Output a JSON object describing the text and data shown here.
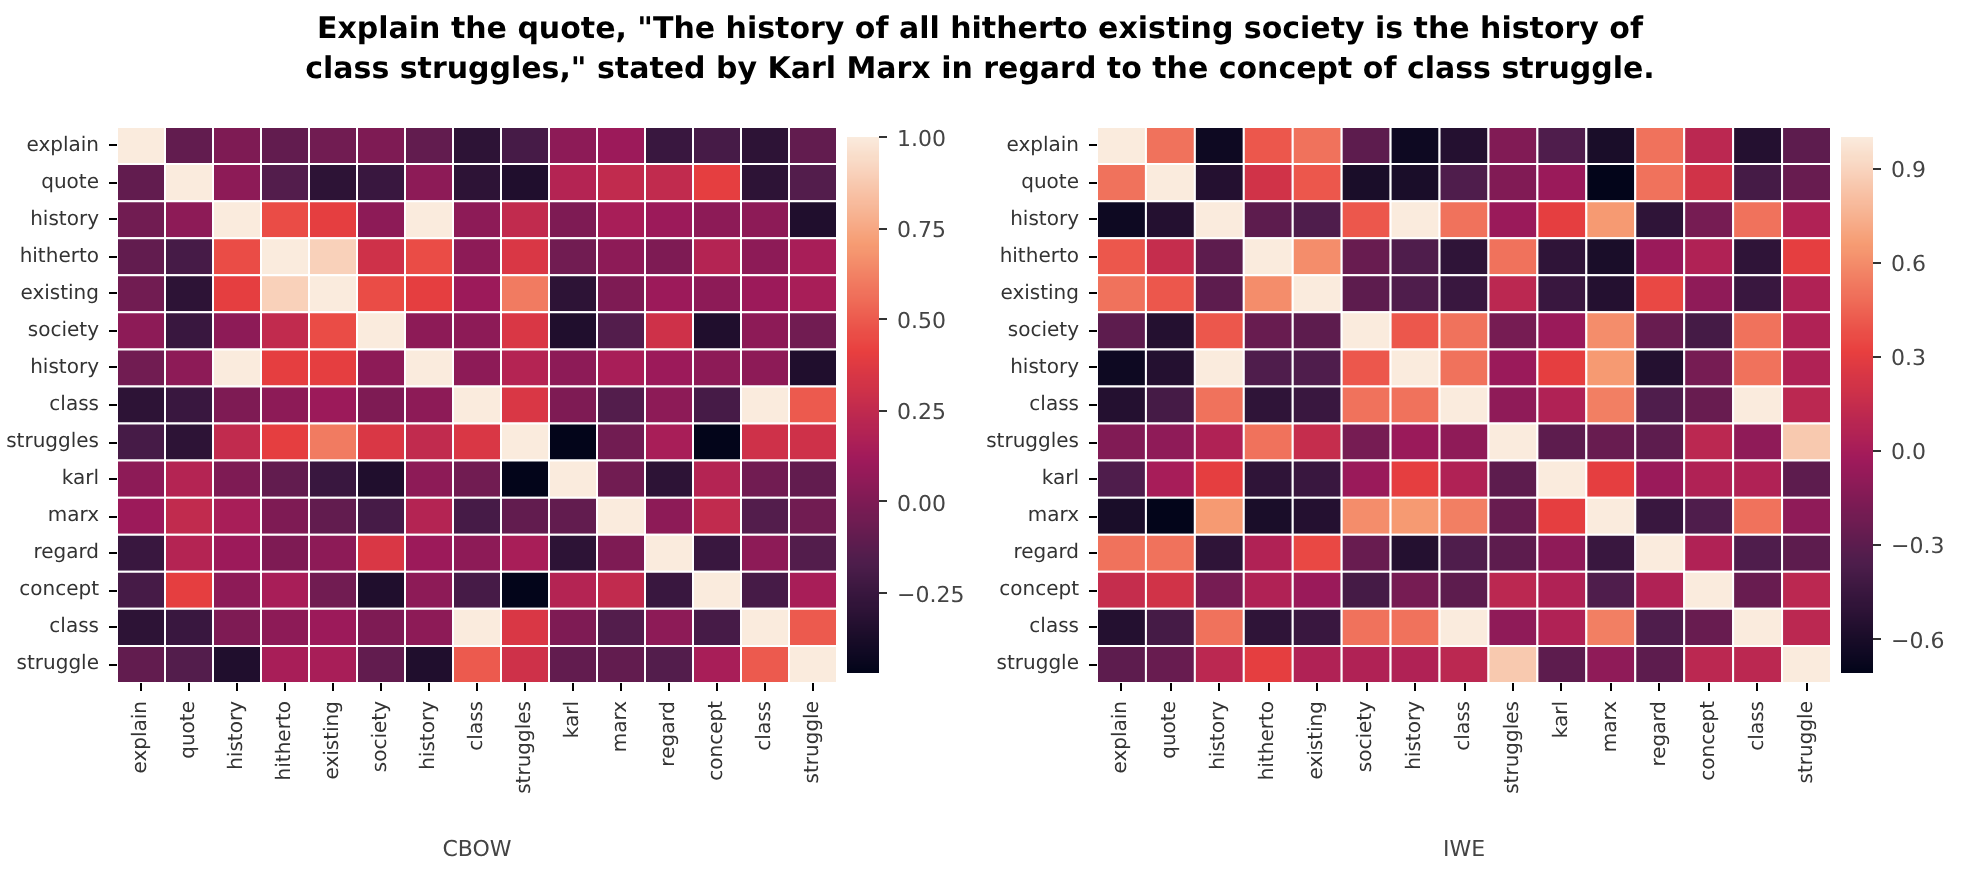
{
  "chart_data": [
    {
      "type": "heatmap",
      "title": "Explain the quote, \"The history of all hitherto existing society is the history of class struggles,\" stated by Karl Marx in regard to the concept of class struggle.",
      "xlabel": "CBOW",
      "categories": [
        "explain",
        "quote",
        "history",
        "hitherto",
        "existing",
        "society",
        "history",
        "class",
        "struggles",
        "karl",
        "marx",
        "regard",
        "concept",
        "class",
        "struggle"
      ],
      "y_categories": [
        "explain",
        "quote",
        "history",
        "hitherto",
        "existing",
        "society",
        "history",
        "class",
        "struggles",
        "karl",
        "marx",
        "regard",
        "concept",
        "class",
        "struggle"
      ],
      "cells": [
        [
          1,
          -0.1,
          0,
          -0.1,
          -0.05,
          0,
          -0.1,
          -0.3,
          -0.2,
          0.05,
          0.1,
          -0.25,
          -0.2,
          -0.3,
          -0.1
        ],
        [
          -0.1,
          1,
          0.05,
          -0.15,
          -0.3,
          -0.25,
          0.05,
          -0.3,
          -0.35,
          0.2,
          0.25,
          0.25,
          0.4,
          -0.3,
          -0.15
        ],
        [
          -0.05,
          0.05,
          1,
          0.45,
          0.4,
          0.05,
          1,
          0.05,
          0.25,
          0,
          0.15,
          0.1,
          0.05,
          0.05,
          -0.35
        ],
        [
          -0.1,
          -0.2,
          0.45,
          1,
          0.9,
          0.3,
          0.45,
          0.05,
          0.35,
          -0.05,
          0.05,
          0,
          0.2,
          0.05,
          0.15
        ],
        [
          -0.05,
          -0.3,
          0.4,
          0.9,
          1,
          0.45,
          0.4,
          0.1,
          0.6,
          -0.3,
          0,
          0.1,
          0.05,
          0.1,
          0.15
        ],
        [
          0.05,
          -0.25,
          0.05,
          0.25,
          0.45,
          1,
          0.05,
          0.05,
          0.35,
          -0.35,
          -0.15,
          0.3,
          -0.35,
          0.05,
          -0.05
        ],
        [
          -0.05,
          0.05,
          1,
          0.4,
          0.4,
          0.05,
          1,
          0.05,
          0.2,
          0.05,
          0.15,
          0.1,
          0.05,
          0.05,
          -0.35
        ],
        [
          -0.3,
          -0.25,
          0,
          0.05,
          0.1,
          0,
          0.05,
          1,
          0.35,
          0,
          -0.15,
          0.05,
          -0.2,
          1,
          0.5
        ],
        [
          -0.2,
          -0.3,
          0.25,
          0.4,
          0.6,
          0.35,
          0.25,
          0.35,
          1,
          -0.47,
          -0.05,
          0.15,
          -0.47,
          0.3,
          0.3
        ],
        [
          0.05,
          0.2,
          0,
          -0.1,
          -0.25,
          -0.35,
          0.05,
          -0.05,
          -0.47,
          1,
          -0.05,
          -0.3,
          0.2,
          -0.05,
          -0.1
        ],
        [
          0.1,
          0.25,
          0.15,
          0,
          -0.1,
          -0.2,
          0.2,
          -0.2,
          -0.1,
          -0.1,
          1,
          0.05,
          0.25,
          -0.15,
          -0.05
        ],
        [
          -0.25,
          0.2,
          0.1,
          0,
          0.05,
          0.35,
          0.1,
          0.05,
          0.15,
          -0.3,
          0,
          1,
          -0.25,
          0.05,
          -0.15
        ],
        [
          -0.2,
          0.4,
          0.05,
          0.15,
          -0.05,
          -0.35,
          0.05,
          -0.2,
          -0.47,
          0.2,
          0.25,
          -0.25,
          1,
          -0.2,
          0.15
        ],
        [
          -0.3,
          -0.25,
          0,
          0.05,
          0.1,
          0,
          0.05,
          1,
          0.35,
          0,
          -0.15,
          0.05,
          -0.2,
          1,
          0.5
        ],
        [
          -0.1,
          -0.15,
          -0.35,
          0.15,
          0.15,
          -0.1,
          -0.35,
          0.5,
          0.3,
          -0.1,
          -0.1,
          -0.15,
          0.15,
          0.5,
          1
        ]
      ],
      "clim": [
        -0.47,
        1.0
      ],
      "cticks": [
        {
          "value": -0.25,
          "label": "−0.25"
        },
        {
          "value": 0,
          "label": "0.00"
        },
        {
          "value": 0.25,
          "label": "0.25"
        },
        {
          "value": 0.5,
          "label": "0.50"
        },
        {
          "value": 0.75,
          "label": "0.75"
        },
        {
          "value": 1,
          "label": "1.00"
        }
      ]
    },
    {
      "type": "heatmap",
      "xlabel": "IWE",
      "categories": [
        "explain",
        "quote",
        "history",
        "hitherto",
        "existing",
        "society",
        "history",
        "class",
        "struggles",
        "karl",
        "marx",
        "regard",
        "concept",
        "class",
        "struggle"
      ],
      "y_categories": [
        "explain",
        "quote",
        "history",
        "hitherto",
        "existing",
        "society",
        "history",
        "class",
        "struggles",
        "karl",
        "marx",
        "regard",
        "concept",
        "class",
        "struggle"
      ],
      "cells": [
        [
          1,
          0.5,
          -0.65,
          0.4,
          0.5,
          -0.3,
          -0.65,
          -0.55,
          -0.15,
          -0.35,
          -0.6,
          0.5,
          0.1,
          -0.55,
          -0.3
        ],
        [
          0.5,
          1,
          -0.55,
          0.2,
          0.4,
          -0.6,
          -0.6,
          -0.35,
          -0.15,
          -0.05,
          -0.71,
          0.5,
          0.2,
          -0.4,
          -0.25
        ],
        [
          -0.65,
          -0.55,
          1,
          -0.3,
          -0.35,
          0.4,
          1,
          0.5,
          -0.05,
          0.3,
          0.65,
          -0.5,
          -0.2,
          0.5,
          0.05
        ],
        [
          0.4,
          0.15,
          -0.3,
          1,
          0.6,
          -0.25,
          -0.35,
          -0.5,
          0.5,
          -0.5,
          -0.6,
          -0.05,
          0.05,
          -0.5,
          0.3
        ],
        [
          0.5,
          0.4,
          -0.3,
          0.6,
          1,
          -0.3,
          -0.35,
          -0.45,
          0.1,
          -0.45,
          -0.55,
          0.35,
          -0.1,
          -0.45,
          0.05
        ],
        [
          -0.3,
          -0.55,
          0.4,
          -0.25,
          -0.3,
          1,
          0.4,
          0.5,
          -0.2,
          -0.05,
          0.6,
          -0.25,
          -0.4,
          0.5,
          0.05
        ],
        [
          -0.65,
          -0.55,
          1,
          -0.35,
          -0.35,
          0.4,
          1,
          0.5,
          -0.05,
          0.3,
          0.65,
          -0.55,
          -0.2,
          0.5,
          0.05
        ],
        [
          -0.55,
          -0.4,
          0.5,
          -0.5,
          -0.45,
          0.5,
          0.5,
          1,
          -0.1,
          0.05,
          0.55,
          -0.35,
          -0.25,
          1,
          0.1
        ],
        [
          -0.15,
          -0.1,
          0.05,
          0.5,
          0.15,
          -0.2,
          -0.05,
          -0.1,
          1,
          -0.3,
          -0.25,
          -0.3,
          0.1,
          -0.1,
          0.85
        ],
        [
          -0.35,
          0,
          0.3,
          -0.5,
          -0.45,
          -0.05,
          0.3,
          0.05,
          -0.3,
          1,
          0.3,
          -0.05,
          0.05,
          0.05,
          -0.3
        ],
        [
          -0.6,
          -0.71,
          0.65,
          -0.6,
          -0.55,
          0.6,
          0.65,
          0.55,
          -0.25,
          0.3,
          1,
          -0.45,
          -0.35,
          0.5,
          -0.1
        ],
        [
          0.5,
          0.5,
          -0.5,
          0.05,
          0.35,
          -0.25,
          -0.55,
          -0.35,
          -0.3,
          -0.1,
          -0.45,
          1,
          0.05,
          -0.35,
          -0.3
        ],
        [
          0.15,
          0.2,
          -0.2,
          0.05,
          -0.05,
          -0.4,
          -0.2,
          -0.3,
          0.1,
          0.05,
          -0.35,
          0.05,
          1,
          -0.25,
          0.1
        ],
        [
          -0.55,
          -0.4,
          0.5,
          -0.5,
          -0.45,
          0.5,
          0.5,
          1,
          -0.1,
          0.05,
          0.55,
          -0.35,
          -0.25,
          1,
          0.1
        ],
        [
          -0.3,
          -0.25,
          0.1,
          0.3,
          0.05,
          0.05,
          0.05,
          0.1,
          0.85,
          -0.3,
          -0.1,
          -0.3,
          0.1,
          0.1,
          1
        ]
      ],
      "clim": [
        -0.71,
        1.0
      ],
      "cticks": [
        {
          "value": -0.6,
          "label": "−0.6"
        },
        {
          "value": -0.3,
          "label": "−0.3"
        },
        {
          "value": 0,
          "label": "0.0"
        },
        {
          "value": 0.3,
          "label": "0.3"
        },
        {
          "value": 0.6,
          "label": "0.6"
        },
        {
          "value": 0.9,
          "label": "0.9"
        }
      ]
    }
  ]
}
